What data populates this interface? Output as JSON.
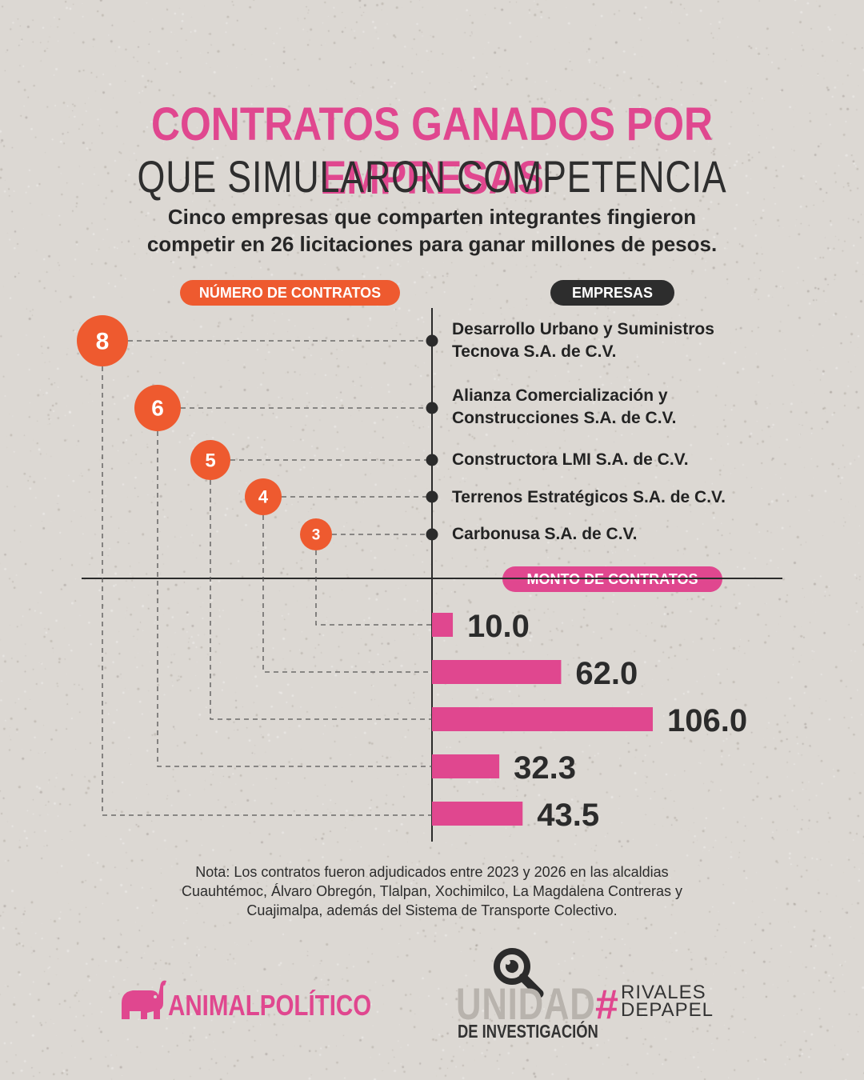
{
  "header": {
    "title_line1": "CONTRATOS GANADOS POR EMPRESAS",
    "title_line2": "QUE SIMULARON COMPETENCIA",
    "subtitle_line1": "Cinco empresas que comparten integrantes fingieron",
    "subtitle_line2": "competir en 26 licitaciones para ganar millones de pesos."
  },
  "labels": {
    "numero": "NÚMERO DE CONTRATOS",
    "empresas": "EMPRESAS",
    "monto": "MONTO DE CONTRATOS"
  },
  "companies": [
    {
      "line1": "Desarrollo Urbano y Suministros",
      "line2": "Tecnova S.A. de C.V."
    },
    {
      "line1": "Alianza Comercialización y",
      "line2": "Construcciones S.A. de C.V."
    },
    {
      "line1": "Constructora LMI S.A. de C.V.",
      "line2": ""
    },
    {
      "line1": "Terrenos Estratégicos S.A. de C.V.",
      "line2": ""
    },
    {
      "line1": "Carbonusa S.A. de C.V.",
      "line2": ""
    }
  ],
  "chart_data": {
    "type": "bar",
    "contract_counts": [
      8,
      6,
      5,
      4,
      3
    ],
    "count_labels": [
      "8",
      "6",
      "5",
      "4",
      "3"
    ],
    "amounts_order_top_to_bottom": [
      "Carbonusa S.A. de C.V.",
      "Terrenos Estratégicos S.A. de C.V.",
      "Constructora LMI S.A. de C.V.",
      "Alianza Comercialización y Construcciones S.A. de C.V.",
      "Desarrollo Urbano y Suministros Tecnova S.A. de C.V."
    ],
    "amounts": [
      10.0,
      62.0,
      106.0,
      32.3,
      43.5
    ],
    "amount_labels": [
      "10.0",
      "62.0",
      "106.0",
      "32.3",
      "43.5"
    ],
    "orientation": "horizontal"
  },
  "note": {
    "line1": "Nota: Los contratos fueron adjudicados entre 2023 y 2026 en las alcaldias",
    "line2": "Cuauhtémoc, Álvaro Obregón, Tlalpan, Xochimilco, La Magdalena Contreras y",
    "line3": "Cuajimalpa, además del Sistema de Transporte Colectivo."
  },
  "logos": {
    "animal": "ANIMALPOLÍTICO",
    "unidad": "UNIDAD",
    "investigacion": "DE INVESTIGACIÓN",
    "hashtag": "#",
    "rivales1": "RIVALES",
    "rivales2": "DEPAPEL"
  },
  "colors": {
    "pink": "#e0478f",
    "orange": "#ee5a2f",
    "dark": "#2d2d2d",
    "background": "#dcd8d3"
  }
}
